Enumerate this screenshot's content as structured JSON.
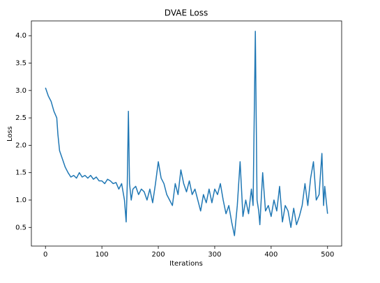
{
  "chart_data": {
    "type": "line",
    "title": "DVAE Loss",
    "xlabel": "Iterations",
    "ylabel": "Loss",
    "x": [
      0,
      5,
      10,
      15,
      20,
      22,
      25,
      30,
      35,
      40,
      45,
      50,
      55,
      60,
      65,
      70,
      75,
      80,
      85,
      90,
      95,
      100,
      105,
      110,
      115,
      120,
      125,
      130,
      135,
      140,
      143,
      145,
      147,
      149,
      152,
      155,
      160,
      165,
      170,
      175,
      180,
      185,
      190,
      195,
      200,
      205,
      210,
      215,
      220,
      225,
      230,
      235,
      240,
      245,
      250,
      255,
      260,
      265,
      270,
      275,
      280,
      285,
      290,
      295,
      300,
      305,
      310,
      315,
      320,
      325,
      330,
      335,
      340,
      345,
      350,
      355,
      360,
      365,
      368,
      372,
      375,
      378,
      380,
      385,
      390,
      395,
      400,
      405,
      410,
      415,
      420,
      425,
      430,
      435,
      440,
      445,
      450,
      455,
      460,
      465,
      470,
      475,
      480,
      485,
      490,
      493,
      495,
      500
    ],
    "series": [
      {
        "name": "loss",
        "color": "#1f77b4",
        "values": [
          3.05,
          2.9,
          2.8,
          2.62,
          2.5,
          2.2,
          1.9,
          1.75,
          1.6,
          1.5,
          1.42,
          1.45,
          1.4,
          1.5,
          1.42,
          1.45,
          1.4,
          1.45,
          1.38,
          1.42,
          1.35,
          1.35,
          1.3,
          1.38,
          1.35,
          1.3,
          1.32,
          1.2,
          1.3,
          1.0,
          0.6,
          1.3,
          2.62,
          1.3,
          1.0,
          1.2,
          1.25,
          1.1,
          1.2,
          1.15,
          1.0,
          1.2,
          0.95,
          1.3,
          1.7,
          1.4,
          1.3,
          1.1,
          1.0,
          0.9,
          1.3,
          1.1,
          1.55,
          1.3,
          1.15,
          1.35,
          1.1,
          1.2,
          1.0,
          0.8,
          1.1,
          0.95,
          1.2,
          0.95,
          1.2,
          1.1,
          1.3,
          1.0,
          0.75,
          0.9,
          0.6,
          0.35,
          0.9,
          1.7,
          0.7,
          1.0,
          0.75,
          1.2,
          0.9,
          4.08,
          1.0,
          0.8,
          0.55,
          1.5,
          0.8,
          0.9,
          0.7,
          1.0,
          0.8,
          1.25,
          0.6,
          0.9,
          0.8,
          0.5,
          0.85,
          0.55,
          0.7,
          0.9,
          1.3,
          0.9,
          1.4,
          1.7,
          1.0,
          1.1,
          1.85,
          0.9,
          1.25,
          0.75
        ]
      }
    ],
    "xlim": [
      -25,
      525
    ],
    "xticks": [
      0,
      100,
      200,
      300,
      400,
      500
    ],
    "ylim": [
      0.16,
      4.27
    ],
    "yticks": [
      0.5,
      {
        "value": 1,
        "label": "1.0"
      },
      1.5,
      {
        "value": 2,
        "label": "2.0"
      },
      2.5,
      {
        "value": 3,
        "label": "3.0"
      },
      3.5,
      {
        "value": 4,
        "label": "4.0"
      }
    ],
    "grid": false
  }
}
